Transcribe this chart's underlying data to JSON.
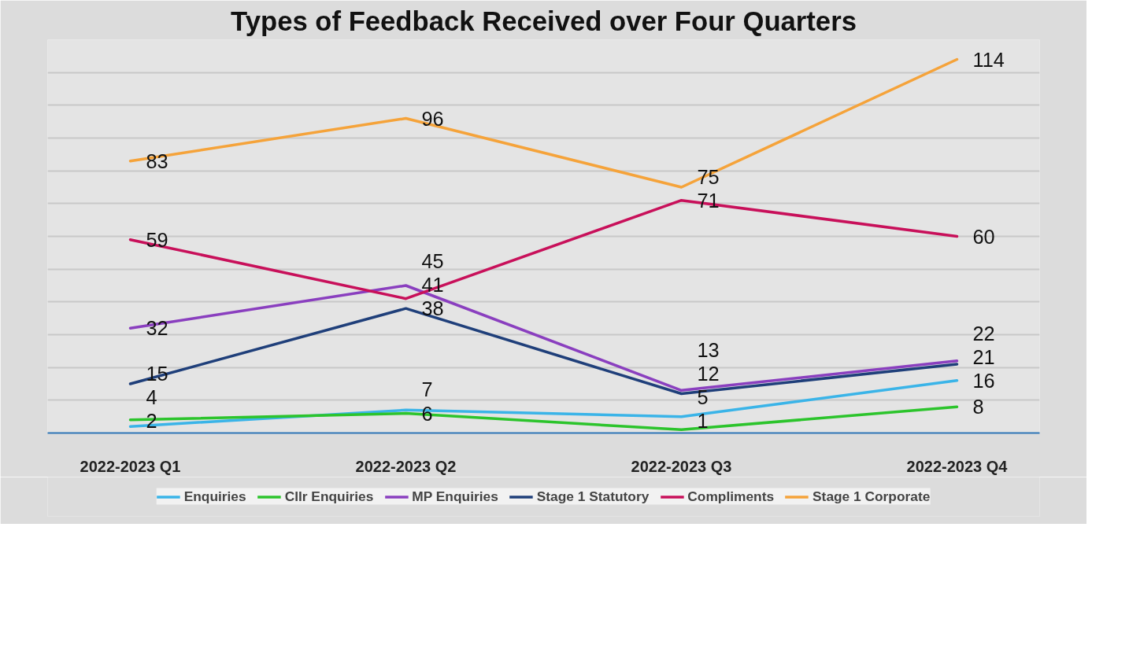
{
  "chart_data": {
    "type": "line",
    "title": "Types of Feedback Received over Four Quarters",
    "categories": [
      "2022-2023 Q1",
      "2022-2023 Q2",
      "2022-2023 Q3",
      "2022-2023 Q4"
    ],
    "series": [
      {
        "name": "Enquiries",
        "color": "#3ab4e8",
        "values": [
          2,
          7,
          5,
          16
        ]
      },
      {
        "name": "Cllr Enquiries",
        "color": "#2cc42c",
        "values": [
          4,
          6,
          1,
          8
        ]
      },
      {
        "name": "MP Enquiries",
        "color": "#8a3fbf",
        "values": [
          32,
          45,
          13,
          22
        ]
      },
      {
        "name": "Stage 1 Statutory",
        "color": "#1f3f7a",
        "values": [
          15,
          38,
          12,
          21
        ]
      },
      {
        "name": "Compliments",
        "color": "#c8105a",
        "values": [
          59,
          41,
          71,
          60
        ]
      },
      {
        "name": "Stage 1 Corporate",
        "color": "#f5a33a",
        "values": [
          83,
          96,
          75,
          114
        ]
      }
    ],
    "ylim": [
      0,
      120
    ],
    "yticks": [
      {
        "value": 0,
        "label": null
      },
      {
        "value": 10,
        "label": null
      },
      {
        "value": 20,
        "label": null
      },
      {
        "value": 30,
        "label": null
      },
      {
        "value": 40,
        "label": null
      },
      {
        "value": 50,
        "label": null
      },
      {
        "value": 60,
        "label": null
      },
      {
        "value": 70,
        "label": null
      },
      {
        "value": 80,
        "label": null
      },
      {
        "value": 90,
        "label": null
      },
      {
        "value": 100,
        "label": null
      },
      {
        "value": 110,
        "label": null
      },
      {
        "value": 120,
        "label": null
      }
    ],
    "tick_labels": "x",
    "grid": "y",
    "legend": "bottom",
    "data_labels": true,
    "line_style": "solid",
    "marker": "none"
  }
}
